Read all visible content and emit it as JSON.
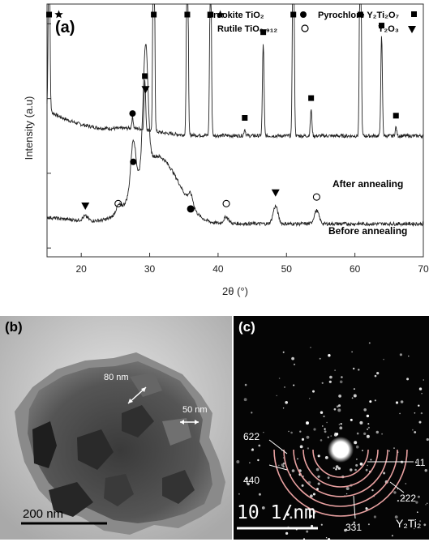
{
  "chart_data": {
    "type": "line",
    "panel_label": "(a)",
    "xlabel": "2θ (°)",
    "ylabel": "Intensity (a.u)",
    "xlim": [
      15,
      70
    ],
    "xticks": [
      "20",
      "30",
      "40",
      "50",
      "60",
      "70"
    ],
    "legend": {
      "brookite": "Brookite TiO₂",
      "rutile": "Rutile TiO₀.₉₁₂",
      "pyrochlore": "Pyrochlore Y₂Ti₂O₇",
      "y2o3": "Y₂O₃"
    },
    "series": [
      {
        "name": "After annealing",
        "baseline": 0.55,
        "peaks": [
          {
            "x": 15.3,
            "h": 0.9,
            "marker": "square+star"
          },
          {
            "x": 27.5,
            "h": 0.05,
            "marker": "brookite"
          },
          {
            "x": 29.3,
            "h": 0.22,
            "marker": "square"
          },
          {
            "x": 30.6,
            "h": 1.5,
            "marker": "square"
          },
          {
            "x": 35.5,
            "h": 1.2,
            "marker": "square"
          },
          {
            "x": 38.9,
            "h": 0.95,
            "marker": "square+star"
          },
          {
            "x": 43.9,
            "h": 0.03,
            "marker": "square"
          },
          {
            "x": 46.6,
            "h": 0.42,
            "marker": "square"
          },
          {
            "x": 51.0,
            "h": 1.3,
            "marker": "square"
          },
          {
            "x": 53.6,
            "h": 0.12,
            "marker": "square"
          },
          {
            "x": 60.8,
            "h": 1.3,
            "marker": "square"
          },
          {
            "x": 63.9,
            "h": 0.45,
            "marker": "square"
          },
          {
            "x": 66.0,
            "h": 0.04,
            "marker": "square"
          }
        ]
      },
      {
        "name": "Before annealing",
        "baseline": 0.15,
        "peaks": [
          {
            "x": 20.6,
            "h": 0.02,
            "marker": "y2o3"
          },
          {
            "x": 25.4,
            "h": 0.03,
            "marker": "rutile"
          },
          {
            "x": 27.6,
            "h": 0.22,
            "marker": "brookite"
          },
          {
            "x": 29.4,
            "h": 0.55,
            "marker": "y2o3"
          },
          {
            "x": 36.0,
            "h": 0.05,
            "marker": "brookite+rutile"
          },
          {
            "x": 41.2,
            "h": 0.03,
            "marker": "rutile"
          },
          {
            "x": 48.4,
            "h": 0.08,
            "marker": "y2o3"
          },
          {
            "x": 54.4,
            "h": 0.06,
            "marker": "rutile"
          }
        ]
      }
    ]
  },
  "tem": {
    "panel_label": "(b)",
    "size_label_1": "80 nm",
    "size_label_2": "50 nm",
    "scale_bar": "200 nm"
  },
  "saed": {
    "panel_label": "(c)",
    "rings": [
      "622",
      "440",
      "331",
      "222",
      "11"
    ],
    "scale_bar": "10 1/nm",
    "phase_label": "Y₂Ti₂"
  }
}
